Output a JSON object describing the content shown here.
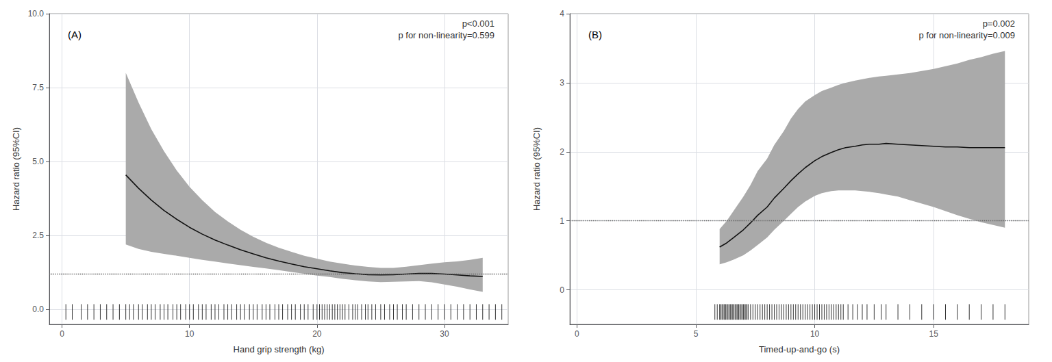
{
  "chart_data": [
    {
      "type": "line",
      "panel_label": "(A)",
      "xlabel": "Hand grip strength (kg)",
      "ylabel": "Hazard ratio (95%CI)",
      "annotation": "p<0.001\np for non-linearity=0.599",
      "xlim": [
        -1,
        35
      ],
      "ylim": [
        -0.5,
        10.0
      ],
      "xticks": [
        0,
        10,
        20,
        30
      ],
      "yticks": [
        {
          "value": 0.0,
          "label": "0.0"
        },
        2.5,
        {
          "value": 5.0,
          "label": "5.0"
        },
        7.5,
        {
          "value": 10.0,
          "label": "10.0"
        }
      ],
      "grid": true,
      "x": [
        5.0,
        6.0,
        7.0,
        8.0,
        9.0,
        10.0,
        11.0,
        12.0,
        13.0,
        14.0,
        15.0,
        16.0,
        17.0,
        18.0,
        19.0,
        20.0,
        21.0,
        22.0,
        23.0,
        24.0,
        25.0,
        26.0,
        27.0,
        28.0,
        29.0,
        30.0,
        31.0,
        32.0,
        33.0
      ],
      "series": [
        {
          "type": "band",
          "color": "#aaaaaa",
          "lower": [
            2.2,
            2.05,
            1.95,
            1.88,
            1.82,
            1.75,
            1.68,
            1.62,
            1.56,
            1.5,
            1.44,
            1.39,
            1.33,
            1.27,
            1.21,
            1.15,
            1.1,
            1.04,
            0.99,
            0.95,
            0.93,
            0.94,
            0.95,
            0.96,
            0.92,
            0.85,
            0.77,
            0.68,
            0.6
          ],
          "upper": [
            8.0,
            7.0,
            6.1,
            5.35,
            4.7,
            4.15,
            3.7,
            3.3,
            2.98,
            2.7,
            2.46,
            2.26,
            2.09,
            1.95,
            1.82,
            1.72,
            1.62,
            1.55,
            1.49,
            1.44,
            1.41,
            1.41,
            1.45,
            1.5,
            1.55,
            1.6,
            1.63,
            1.68,
            1.75
          ]
        },
        {
          "type": "line",
          "color": "#111111",
          "values": [
            4.55,
            4.1,
            3.7,
            3.35,
            3.05,
            2.78,
            2.55,
            2.35,
            2.18,
            2.02,
            1.88,
            1.75,
            1.64,
            1.54,
            1.45,
            1.38,
            1.31,
            1.25,
            1.21,
            1.18,
            1.17,
            1.18,
            1.2,
            1.22,
            1.22,
            1.2,
            1.17,
            1.14,
            1.12
          ]
        },
        {
          "type": "hline",
          "color": "#666666",
          "line_style": "dotted",
          "y": 1.2
        },
        {
          "type": "rug",
          "color": "#000000",
          "x": [
            0.3,
            0.8,
            1.5,
            2.0,
            2.5,
            3.0,
            3.5,
            4.0,
            4.5,
            5.0,
            5.3,
            5.6,
            6.0,
            6.3,
            6.7,
            7.0,
            7.3,
            7.7,
            8.0,
            8.3,
            8.7,
            9.0,
            9.3,
            9.7,
            10.0,
            10.3,
            10.7,
            11.0,
            11.3,
            11.7,
            12.0,
            12.3,
            12.7,
            13.0,
            13.3,
            13.7,
            14.0,
            14.3,
            14.7,
            15.0,
            15.3,
            15.7,
            16.0,
            16.3,
            16.7,
            17.0,
            17.3,
            17.7,
            18.0,
            18.3,
            18.7,
            19.0,
            19.3,
            19.7,
            20.0,
            20.2,
            20.4,
            20.6,
            20.8,
            21.0,
            21.2,
            21.4,
            21.6,
            21.8,
            22.0,
            22.2,
            22.5,
            22.8,
            23.0,
            23.2,
            23.5,
            23.8,
            24.0,
            24.3,
            24.6,
            25.0,
            25.3,
            25.7,
            26.0,
            26.3,
            26.7,
            27.0,
            27.5,
            28.0,
            28.5,
            29.0,
            29.5,
            30.0,
            30.5,
            31.0,
            31.5,
            32.0,
            32.5,
            33.0,
            33.5,
            34.0,
            34.5
          ]
        }
      ]
    },
    {
      "type": "line",
      "panel_label": "(B)",
      "xlabel": "Timed-up-and-go (s)",
      "ylabel": "Hazard ratio (95%CI)",
      "annotation": "p=0.002\np for non-linearity=0.009",
      "xlim": [
        -0.3,
        19.0
      ],
      "ylim": [
        -0.5,
        4.0
      ],
      "xticks": [
        0,
        5,
        10,
        15
      ],
      "yticks": [
        0,
        1,
        2,
        3,
        4
      ],
      "grid": true,
      "x": [
        6.0,
        6.3,
        6.6,
        7.0,
        7.3,
        7.6,
        8.0,
        8.3,
        8.7,
        9.0,
        9.3,
        9.6,
        10.0,
        10.3,
        10.7,
        11.0,
        11.3,
        11.7,
        12.0,
        12.3,
        12.7,
        13.0,
        13.5,
        14.0,
        14.5,
        15.0,
        15.5,
        16.0,
        16.5,
        17.0,
        17.5,
        18.0
      ],
      "series": [
        {
          "type": "band",
          "color": "#aaaaaa",
          "lower": [
            0.37,
            0.4,
            0.44,
            0.5,
            0.57,
            0.65,
            0.76,
            0.87,
            1.0,
            1.1,
            1.2,
            1.28,
            1.36,
            1.4,
            1.43,
            1.44,
            1.44,
            1.44,
            1.43,
            1.42,
            1.4,
            1.38,
            1.35,
            1.3,
            1.25,
            1.2,
            1.14,
            1.08,
            1.03,
            0.98,
            0.94,
            0.9
          ],
          "upper": [
            0.88,
            1.0,
            1.15,
            1.35,
            1.52,
            1.72,
            1.9,
            2.1,
            2.3,
            2.48,
            2.62,
            2.73,
            2.82,
            2.88,
            2.93,
            2.97,
            3.0,
            3.03,
            3.05,
            3.07,
            3.09,
            3.1,
            3.12,
            3.14,
            3.17,
            3.2,
            3.24,
            3.28,
            3.33,
            3.37,
            3.42,
            3.46
          ]
        },
        {
          "type": "line",
          "color": "#111111",
          "values": [
            0.62,
            0.68,
            0.76,
            0.87,
            0.97,
            1.08,
            1.2,
            1.33,
            1.47,
            1.58,
            1.68,
            1.77,
            1.87,
            1.93,
            1.99,
            2.03,
            2.06,
            2.08,
            2.1,
            2.11,
            2.11,
            2.12,
            2.11,
            2.1,
            2.09,
            2.08,
            2.07,
            2.07,
            2.06,
            2.06,
            2.06,
            2.06
          ]
        },
        {
          "type": "hline",
          "color": "#666666",
          "line_style": "dotted",
          "y": 1.0
        },
        {
          "type": "rug",
          "color": "#000000",
          "x": [
            5.8,
            5.9,
            6.0,
            6.05,
            6.1,
            6.15,
            6.2,
            6.25,
            6.3,
            6.35,
            6.4,
            6.45,
            6.5,
            6.55,
            6.6,
            6.65,
            6.7,
            6.75,
            6.8,
            6.85,
            6.9,
            6.95,
            7.0,
            7.05,
            7.1,
            7.15,
            7.2,
            7.3,
            7.4,
            7.5,
            7.6,
            7.7,
            7.8,
            7.9,
            8.0,
            8.1,
            8.2,
            8.3,
            8.4,
            8.5,
            8.6,
            8.7,
            8.8,
            8.9,
            9.0,
            9.1,
            9.2,
            9.3,
            9.4,
            9.5,
            9.6,
            9.7,
            9.8,
            9.9,
            10.0,
            10.1,
            10.2,
            10.3,
            10.4,
            10.5,
            10.6,
            10.7,
            10.8,
            10.9,
            11.0,
            11.1,
            11.2,
            11.4,
            11.6,
            11.8,
            12.0,
            12.2,
            12.5,
            12.8,
            13.0,
            13.5,
            14.0,
            14.5,
            15.0,
            15.5,
            16.0,
            16.5,
            17.0,
            17.5,
            18.0
          ]
        }
      ]
    }
  ]
}
